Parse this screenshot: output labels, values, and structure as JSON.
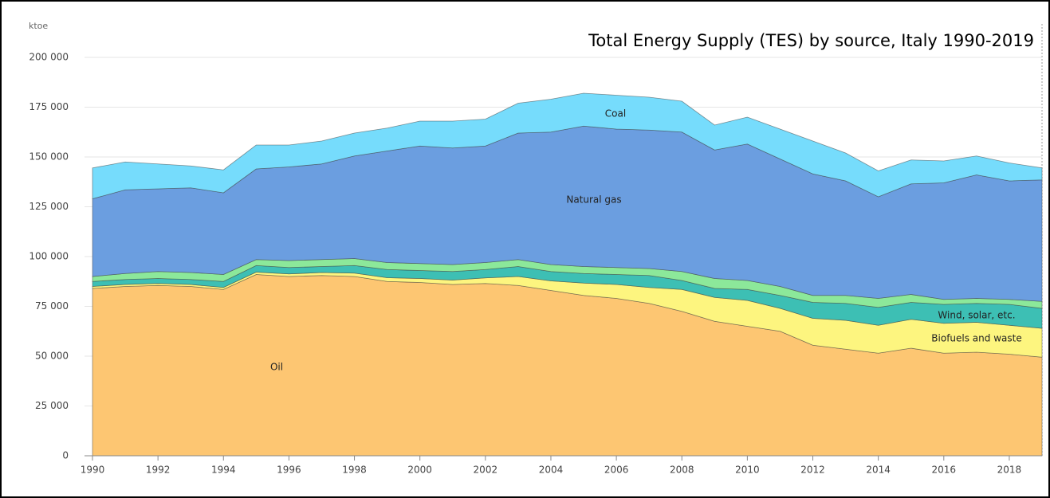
{
  "chart_data": {
    "type": "stacked_area",
    "title": "Total Energy Supply (TES) by source, Italy 1990-2019",
    "y_label": "ktoe",
    "x": [
      1990,
      1991,
      1992,
      1993,
      1994,
      1995,
      1996,
      1997,
      1998,
      1999,
      2000,
      2001,
      2002,
      2003,
      2004,
      2005,
      2006,
      2007,
      2008,
      2009,
      2010,
      2011,
      2012,
      2013,
      2014,
      2015,
      2016,
      2017,
      2018,
      2019
    ],
    "xlim": [
      1990,
      2019
    ],
    "xticks": [
      1990,
      1992,
      1994,
      1996,
      1998,
      2000,
      2002,
      2004,
      2006,
      2008,
      2010,
      2012,
      2014,
      2016,
      2018
    ],
    "ylim": [
      0,
      200000
    ],
    "yticks": [
      0,
      {
        "value": 25000,
        "label": "25 000"
      },
      {
        "value": 50000,
        "label": "50 000"
      },
      {
        "value": 75000,
        "label": "75 000"
      },
      {
        "value": 100000,
        "label": "100 000"
      },
      {
        "value": 125000,
        "label": "125 000"
      },
      {
        "value": 150000,
        "label": "150 000"
      },
      {
        "value": 175000,
        "label": "175 000"
      },
      {
        "value": 200000,
        "label": "200 000"
      }
    ],
    "grid": true,
    "series": [
      {
        "name": "Oil",
        "color": "#fdc672",
        "values": [
          84000,
          85000,
          85500,
          85000,
          83500,
          91000,
          90000,
          90500,
          90000,
          87500,
          87000,
          86000,
          86500,
          85500,
          83000,
          80500,
          79000,
          76500,
          72500,
          67500,
          65000,
          62500,
          55500,
          53500,
          51500,
          54000,
          51500,
          52000,
          51000,
          49500
        ]
      },
      {
        "name": "Biofuels and waste",
        "color": "#fdf57f",
        "values": [
          1000,
          1000,
          1000,
          1000,
          1000,
          1200,
          1300,
          1500,
          1700,
          1900,
          2000,
          2200,
          2800,
          4500,
          4800,
          6200,
          7000,
          8000,
          11000,
          12000,
          13000,
          11500,
          13500,
          14500,
          14000,
          14500,
          15000,
          15000,
          14500,
          14500
        ]
      },
      {
        "name": "Wind, solar, etc.",
        "color": "#3dbfb4",
        "values": [
          2500,
          2500,
          2500,
          2500,
          3000,
          3300,
          3200,
          3000,
          3800,
          4100,
          4000,
          4300,
          4200,
          5000,
          4700,
          4800,
          5000,
          6000,
          4500,
          4500,
          5500,
          6500,
          8000,
          8500,
          9000,
          8500,
          9500,
          9500,
          10500,
          10000
        ]
      },
      {
        "color": "#8ce89a",
        "values": [
          2500,
          3000,
          3500,
          3500,
          3500,
          3000,
          3500,
          3500,
          3500,
          3500,
          3500,
          3500,
          3500,
          3500,
          3500,
          3500,
          3500,
          3500,
          4500,
          5000,
          4500,
          4500,
          3500,
          4000,
          4500,
          4000,
          2500,
          2500,
          2500,
          3500
        ]
      },
      {
        "name": "Natural gas",
        "color": "#6b9ee0",
        "values": [
          39000,
          42000,
          41500,
          42500,
          41000,
          45500,
          47000,
          48000,
          51500,
          56000,
          59000,
          58500,
          58500,
          63500,
          66500,
          70500,
          69500,
          69500,
          70000,
          64500,
          68500,
          64000,
          61000,
          57500,
          51000,
          55500,
          58500,
          62000,
          59500,
          61000
        ]
      },
      {
        "name": "Coal",
        "color": "#76dcfc",
        "values": [
          15500,
          14000,
          12500,
          11000,
          11500,
          12000,
          11000,
          11500,
          11500,
          11500,
          12500,
          13500,
          13500,
          15000,
          16500,
          16500,
          17000,
          16500,
          15500,
          12500,
          13500,
          15000,
          16500,
          14000,
          13000,
          12000,
          11000,
          9500,
          9000,
          6000
        ]
      }
    ]
  }
}
